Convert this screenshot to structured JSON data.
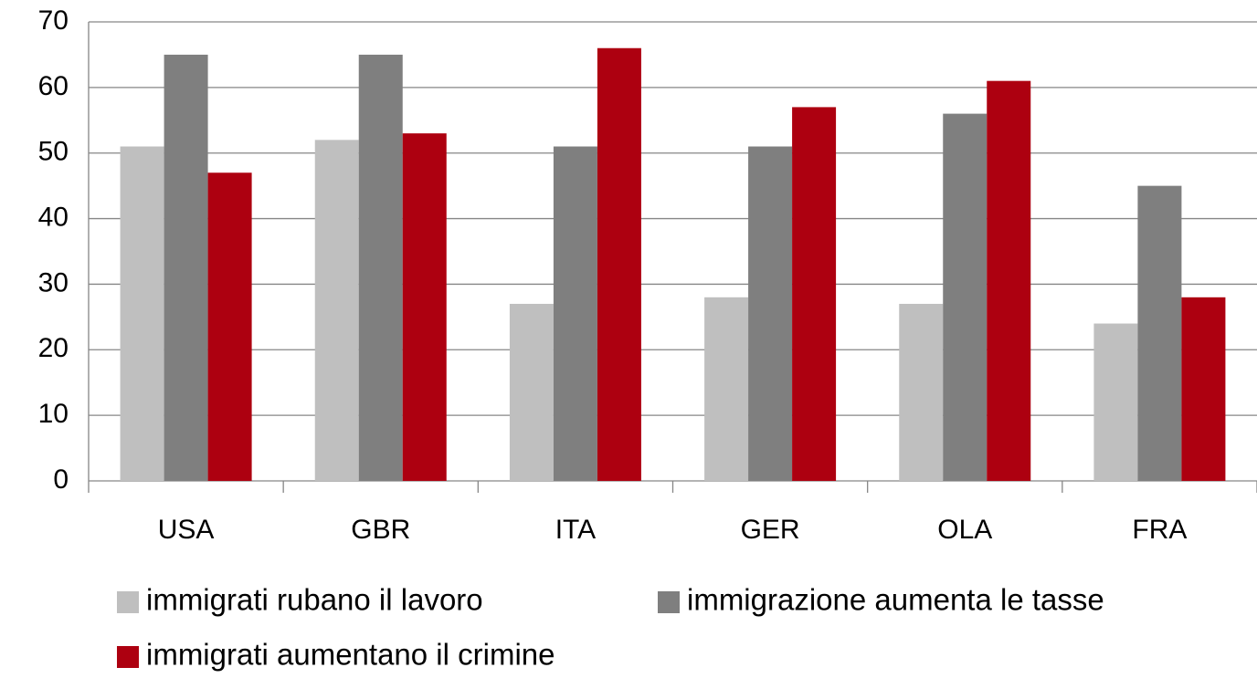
{
  "chart_data": {
    "type": "bar",
    "categories": [
      "USA",
      "GBR",
      "ITA",
      "GER",
      "OLA",
      "FRA"
    ],
    "series": [
      {
        "name": "immigrati rubano il lavoro",
        "color": "#bfbfbf",
        "values": [
          51,
          52,
          27,
          28,
          27,
          24
        ]
      },
      {
        "name": "immigrazione aumenta le tasse",
        "color": "#7f7f7f",
        "values": [
          65,
          65,
          51,
          51,
          56,
          45
        ]
      },
      {
        "name": "immigrati aumentano il crimine",
        "color": "#ad0010",
        "values": [
          47,
          53,
          66,
          57,
          61,
          28
        ]
      }
    ],
    "ylim": [
      0,
      70
    ],
    "yticks": [
      0,
      10,
      20,
      30,
      40,
      50,
      60,
      70
    ],
    "grid": true
  }
}
